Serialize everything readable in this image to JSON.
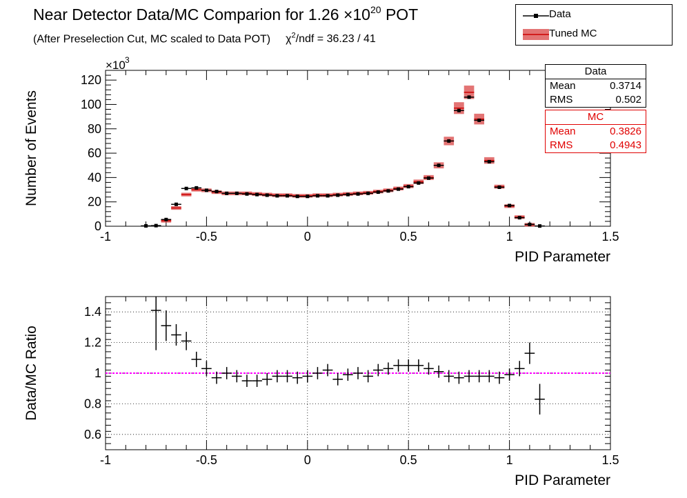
{
  "title": {
    "main": "Near Detector Data/MC Comparion for 1.26 ×10",
    "exponent": "20",
    "suffix": " POT"
  },
  "subtitle": {
    "text": "(After Preselection Cut, MC scaled to Data POT)",
    "chi_prefix": "χ",
    "chi_sup": "2",
    "chi_rest": "/ndf = 36.23 / 41"
  },
  "legend": {
    "data_label": "Data",
    "mc_label": "Tuned MC"
  },
  "stats": {
    "data": {
      "title": "Data",
      "mean_label": "Mean",
      "mean": "0.3714",
      "rms_label": "RMS",
      "rms": "0.502"
    },
    "mc": {
      "title": "MC",
      "mean_label": "Mean",
      "mean": "0.3826",
      "rms_label": "RMS",
      "rms": "0.4943"
    }
  },
  "colors": {
    "data": "#000000",
    "mc": "#cc0000",
    "mc_band": "#d94545",
    "ratio_ref": "#ff00ff"
  },
  "chart_data": [
    {
      "type": "scatter",
      "xlabel": "PID Parameter",
      "ylabel": "Number of Events",
      "y_multiplier": "×10",
      "y_multiplier_exp": "3",
      "xlim": [
        -1,
        1.5
      ],
      "ylim": [
        0,
        128
      ],
      "xticks": [
        -1,
        -0.5,
        0,
        0.5,
        1,
        1.5
      ],
      "yticks": [
        0,
        20,
        40,
        60,
        80,
        100,
        120
      ],
      "grid": false,
      "x": [
        -0.8,
        -0.75,
        -0.7,
        -0.65,
        -0.6,
        -0.55,
        -0.5,
        -0.45,
        -0.4,
        -0.35,
        -0.3,
        -0.25,
        -0.2,
        -0.15,
        -0.1,
        -0.05,
        0,
        0.05,
        0.1,
        0.15,
        0.2,
        0.25,
        0.3,
        0.35,
        0.4,
        0.45,
        0.5,
        0.55,
        0.6,
        0.65,
        0.7,
        0.75,
        0.8,
        0.85,
        0.9,
        0.95,
        1,
        1.05,
        1.1,
        1.15,
        1.2,
        1.25,
        1.3,
        1.35,
        1.4,
        1.45
      ],
      "series": [
        {
          "name": "Data",
          "values": [
            0.3,
            0.5,
            5.5,
            18,
            31,
            31.5,
            29.5,
            28.5,
            27,
            27,
            26.5,
            26,
            25.5,
            25,
            25,
            24.5,
            24.5,
            25,
            25,
            25.5,
            26,
            26.5,
            27,
            28,
            29,
            30.5,
            32.5,
            35.5,
            39.5,
            50,
            70,
            95,
            106,
            87,
            53,
            32,
            17,
            7,
            1.5,
            0.2,
            0,
            0,
            0,
            0,
            0,
            0
          ]
        },
        {
          "name": "Tuned MC",
          "values": [
            0.2,
            0.3,
            4.5,
            15,
            26,
            30,
            29.5,
            28,
            27,
            27,
            27,
            26.5,
            26,
            25.5,
            25.5,
            25,
            25,
            25.5,
            25.5,
            26,
            26.5,
            27,
            27.5,
            28.5,
            29.5,
            31,
            33,
            36.5,
            40,
            50,
            70,
            97,
            110,
            88,
            54,
            32.5,
            16.5,
            7.5,
            1.2,
            0.2,
            0,
            0,
            0,
            0,
            0,
            0
          ]
        }
      ]
    },
    {
      "type": "scatter",
      "xlabel": "PID Parameter",
      "ylabel": "Data/MC Ratio",
      "xlim": [
        -1,
        1.5
      ],
      "ylim": [
        0.5,
        1.5
      ],
      "xticks": [
        -1,
        -0.5,
        0,
        0.5,
        1,
        1.5
      ],
      "yticks": [
        0.6,
        0.8,
        1,
        1.2,
        1.4
      ],
      "grid": true,
      "reference_line": 1,
      "x": [
        -0.75,
        -0.7,
        -0.65,
        -0.6,
        -0.55,
        -0.5,
        -0.45,
        -0.4,
        -0.35,
        -0.3,
        -0.25,
        -0.2,
        -0.15,
        -0.1,
        -0.05,
        0,
        0.05,
        0.1,
        0.15,
        0.2,
        0.25,
        0.3,
        0.35,
        0.4,
        0.45,
        0.5,
        0.55,
        0.6,
        0.65,
        0.7,
        0.75,
        0.8,
        0.85,
        0.9,
        0.95,
        1,
        1.05,
        1.1,
        1.15
      ],
      "series": [
        {
          "name": "Data/MC Ratio",
          "values": [
            1.41,
            1.31,
            1.25,
            1.21,
            1.09,
            1.03,
            0.97,
            1.0,
            0.98,
            0.95,
            0.95,
            0.96,
            0.98,
            0.98,
            0.97,
            0.98,
            1.0,
            1.02,
            0.96,
            0.99,
            1.0,
            0.98,
            1.02,
            1.03,
            1.05,
            1.05,
            1.05,
            1.03,
            1.01,
            0.98,
            0.97,
            0.98,
            0.98,
            0.98,
            0.97,
            0.99,
            1.03,
            1.13,
            0.83
          ],
          "errors": [
            0.26,
            0.1,
            0.07,
            0.06,
            0.05,
            0.05,
            0.04,
            0.04,
            0.04,
            0.04,
            0.04,
            0.04,
            0.04,
            0.04,
            0.04,
            0.04,
            0.04,
            0.04,
            0.04,
            0.04,
            0.04,
            0.04,
            0.04,
            0.04,
            0.04,
            0.04,
            0.04,
            0.04,
            0.04,
            0.04,
            0.04,
            0.04,
            0.04,
            0.04,
            0.04,
            0.04,
            0.05,
            0.07,
            0.1
          ]
        }
      ]
    }
  ]
}
